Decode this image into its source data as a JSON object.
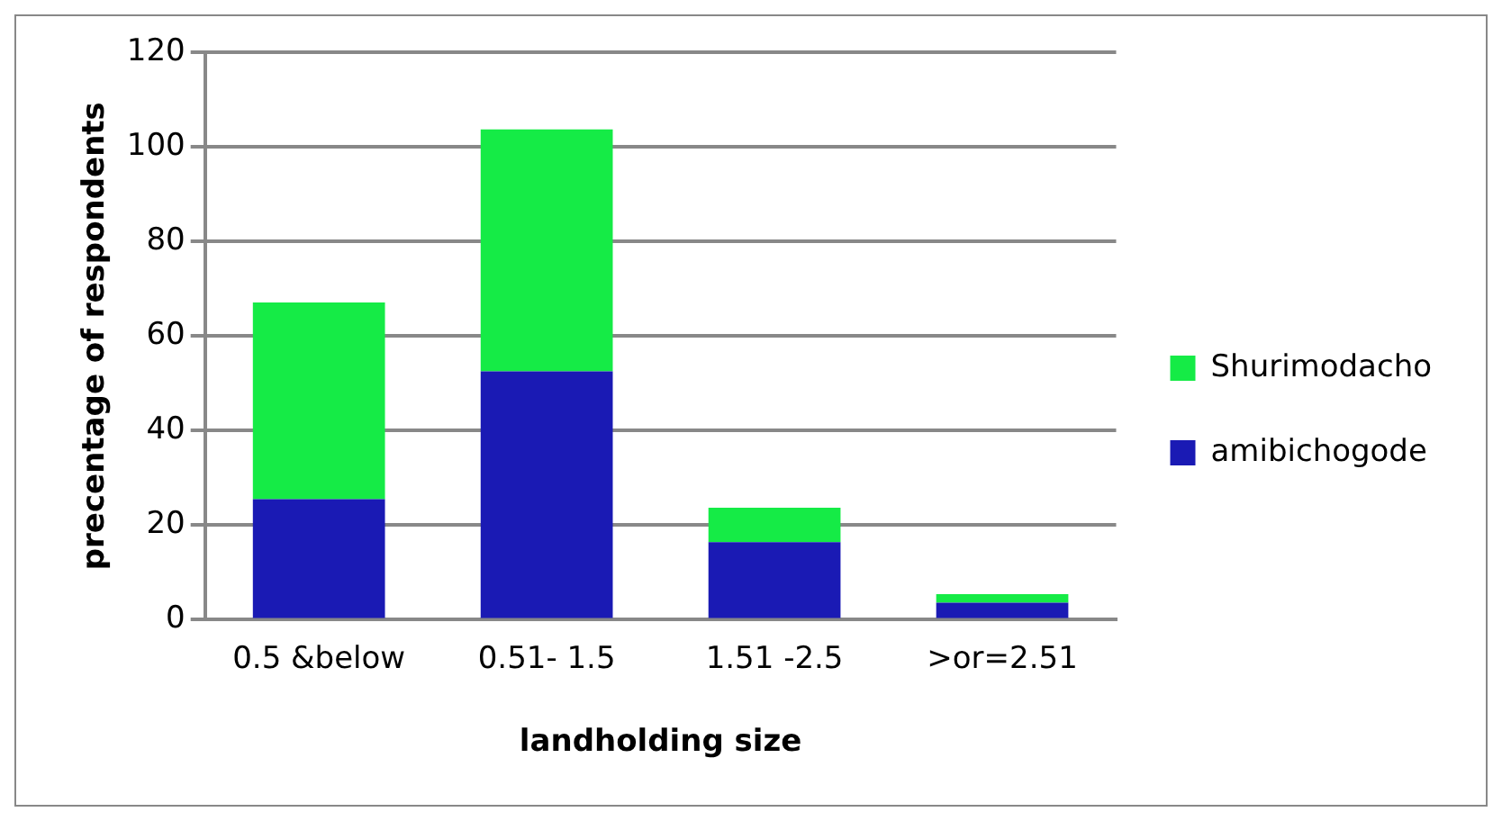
{
  "chart_data": {
    "type": "bar",
    "stacked": true,
    "xlabel": "landholding size",
    "ylabel": "precentage of respondents",
    "categories": [
      "0.5 &below",
      "0.51- 1.5",
      "1.51 -2.5",
      ">or=2.51"
    ],
    "series": [
      {
        "name": "amibichogode",
        "color": "#1a1ab4",
        "values": [
          25.5,
          52.5,
          16.4,
          3.6
        ]
      },
      {
        "name": "Shurimodacho",
        "color": "#15eb46",
        "values": [
          41.6,
          51.2,
          7.3,
          1.8
        ]
      }
    ],
    "ylim": [
      0,
      120
    ],
    "yticks": [
      0,
      20,
      40,
      60,
      80,
      100,
      120
    ],
    "grid": "y",
    "legend": "right"
  }
}
